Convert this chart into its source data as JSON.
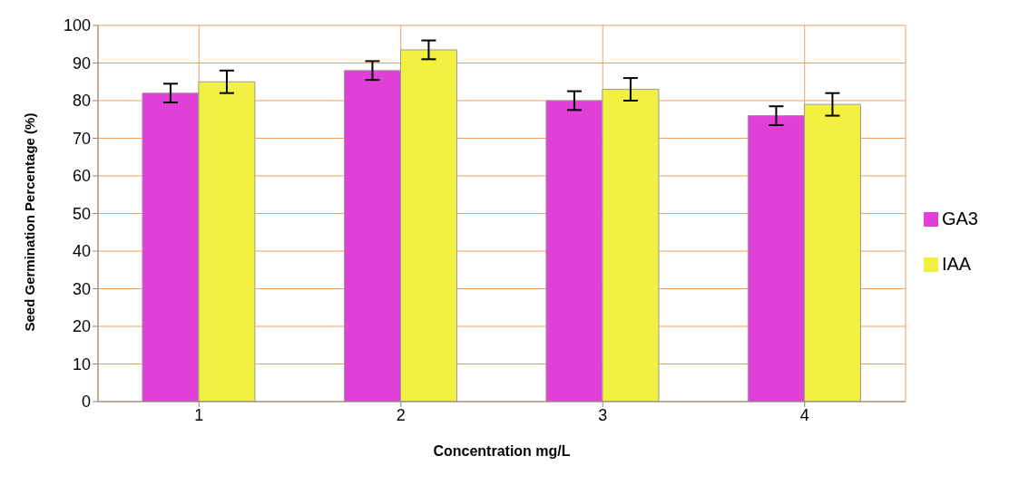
{
  "chart_data": {
    "type": "bar",
    "xlabel": "Concentration mg/L",
    "ylabel": "Seed Germination Percentage (%)",
    "categories": [
      "1",
      "2",
      "3",
      "4"
    ],
    "series": [
      {
        "name": "GA3",
        "color": "#e040d8",
        "values": [
          82,
          88,
          80,
          76
        ],
        "errors": [
          2.5,
          2.5,
          2.5,
          2.5
        ]
      },
      {
        "name": "IAA",
        "color": "#f2f040",
        "values": [
          85,
          93.5,
          83,
          79
        ],
        "errors": [
          3,
          2.5,
          3,
          3
        ]
      }
    ],
    "ylim": [
      0,
      100
    ],
    "yticks": [
      0,
      10,
      20,
      30,
      40,
      50,
      60,
      70,
      80,
      90,
      100
    ],
    "grid": true,
    "legend": "right"
  }
}
